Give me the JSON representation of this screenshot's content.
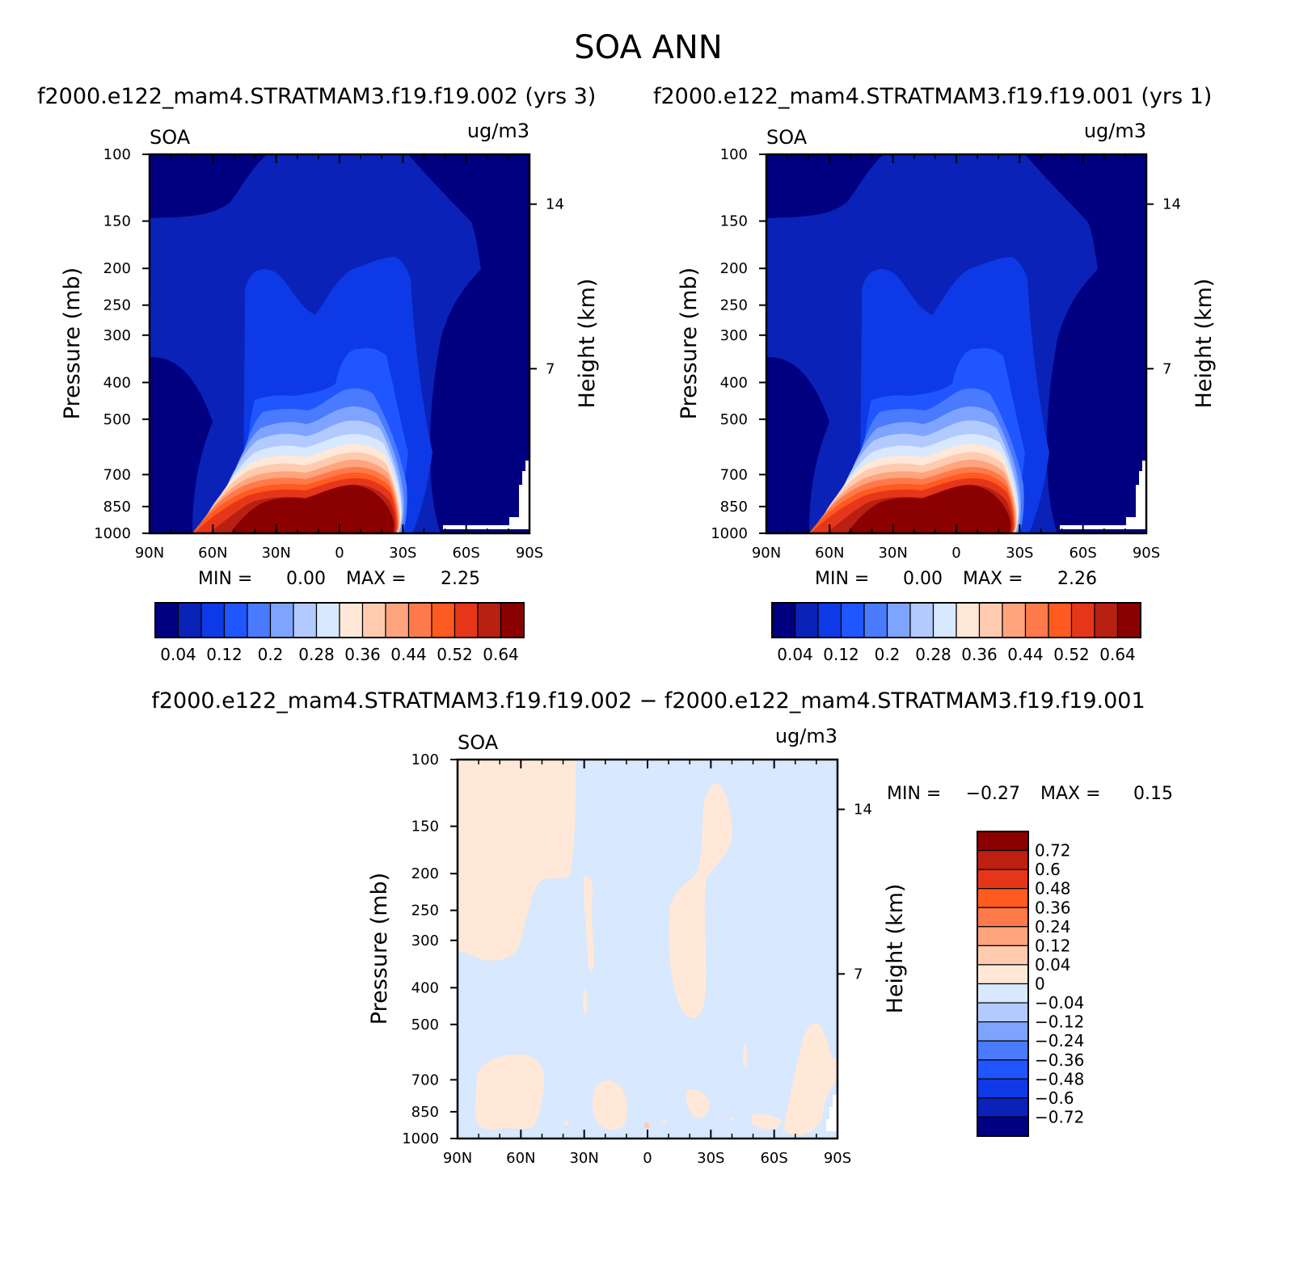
{
  "figure": {
    "title": "SOA ANN",
    "case_top_left": "f2000.e122_mam4.STRATMAM3.f19.f19.002 (yrs 3)",
    "case_top_right": "f2000.e122_mam4.STRATMAM3.f19.f19.001 (yrs 1)",
    "diff_title": "f2000.e122_mam4.STRATMAM3.f19.f19.002 − f2000.e122_mam4.STRATMAM3.f19.f19.001"
  },
  "colors": {
    "main_scale": [
      "#000080",
      "#0a22b8",
      "#0d3ae6",
      "#1f56ff",
      "#4a7bff",
      "#7ea4ff",
      "#b3caff",
      "#d7e8ff",
      "#ffe8d8",
      "#ffcbb0",
      "#ffa47d",
      "#ff7a4a",
      "#ff5a20",
      "#e6361a",
      "#b82012",
      "#8b0000"
    ],
    "diff_scale_top_to_bottom": [
      "#8b0000",
      "#bd2010",
      "#e6361a",
      "#ff5a20",
      "#ff7a4a",
      "#ffa47d",
      "#ffcbb0",
      "#ffe8d8",
      "#d7e8ff",
      "#b3caff",
      "#7ea4ff",
      "#4a7bff",
      "#1f56ff",
      "#0d3ae6",
      "#0a22b8",
      "#000080"
    ],
    "diff_negative_fill": "#d7e8ff",
    "diff_positive_fill": "#ffe8d8"
  },
  "chart_data": [
    {
      "type": "heatmap",
      "name": "SOA",
      "units": "ug/m3",
      "xlabel": "",
      "ylabel": "Pressure (mb)",
      "ylabel_right": "Height (km)",
      "x_ticks": [
        "90N",
        "60N",
        "30N",
        "0",
        "30S",
        "60S",
        "90S"
      ],
      "y_ticks": [
        100,
        150,
        200,
        250,
        300,
        400,
        500,
        700,
        850,
        1000
      ],
      "y_ticks_right": [
        14,
        7
      ],
      "min_label": "MIN =",
      "min_value": "0.00",
      "max_label": "MAX =",
      "max_value": "2.25",
      "colorbar_labels": [
        "0.04",
        "0.12",
        "0.2",
        "0.28",
        "0.36",
        "0.44",
        "0.52",
        "0.64"
      ]
    },
    {
      "type": "heatmap",
      "name": "SOA",
      "units": "ug/m3",
      "xlabel": "",
      "ylabel": "Pressure (mb)",
      "ylabel_right": "Height (km)",
      "x_ticks": [
        "90N",
        "60N",
        "30N",
        "0",
        "30S",
        "60S",
        "90S"
      ],
      "y_ticks": [
        100,
        150,
        200,
        250,
        300,
        400,
        500,
        700,
        850,
        1000
      ],
      "y_ticks_right": [
        14,
        7
      ],
      "min_label": "MIN =",
      "min_value": "0.00",
      "max_label": "MAX =",
      "max_value": "2.26",
      "colorbar_labels": [
        "0.04",
        "0.12",
        "0.2",
        "0.28",
        "0.36",
        "0.44",
        "0.52",
        "0.64"
      ]
    },
    {
      "type": "heatmap",
      "name": "SOA",
      "units": "ug/m3",
      "xlabel": "",
      "ylabel": "Pressure (mb)",
      "ylabel_right": "Height (km)",
      "x_ticks": [
        "90N",
        "60N",
        "30N",
        "0",
        "30S",
        "60S",
        "90S"
      ],
      "y_ticks": [
        100,
        150,
        200,
        250,
        300,
        400,
        500,
        700,
        850,
        1000
      ],
      "y_ticks_right": [
        14,
        7
      ],
      "min_label": "MIN =",
      "min_value": "−0.27",
      "max_label": "MAX =",
      "max_value": "0.15",
      "colorbar_labels": [
        "0.72",
        "0.6",
        "0.48",
        "0.36",
        "0.24",
        "0.12",
        "0.04",
        "0",
        "−0.04",
        "−0.12",
        "−0.24",
        "−0.36",
        "−0.48",
        "−0.6",
        "−0.72"
      ]
    }
  ]
}
